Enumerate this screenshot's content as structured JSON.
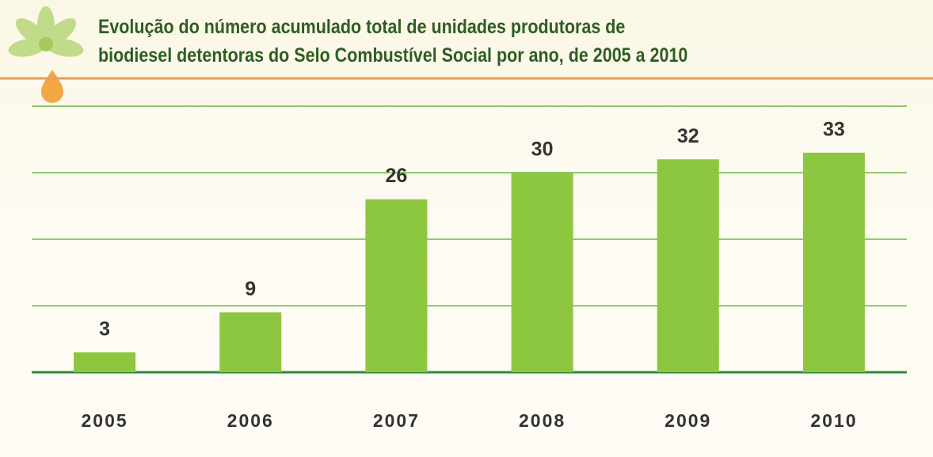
{
  "chart_data": {
    "type": "bar",
    "title": "Evolução do número acumulado total de unidades produtoras de\nbiodiesel detentoras do Selo Combustível Social por ano, de 2005 a 2010",
    "categories": [
      "2005",
      "2006",
      "2007",
      "2008",
      "2009",
      "2010"
    ],
    "values": [
      3,
      9,
      26,
      30,
      32,
      33
    ],
    "color": "#8dc63f",
    "ylim": [
      0,
      40
    ],
    "yticks": [
      0,
      10,
      20,
      30,
      40
    ],
    "grid": true
  }
}
